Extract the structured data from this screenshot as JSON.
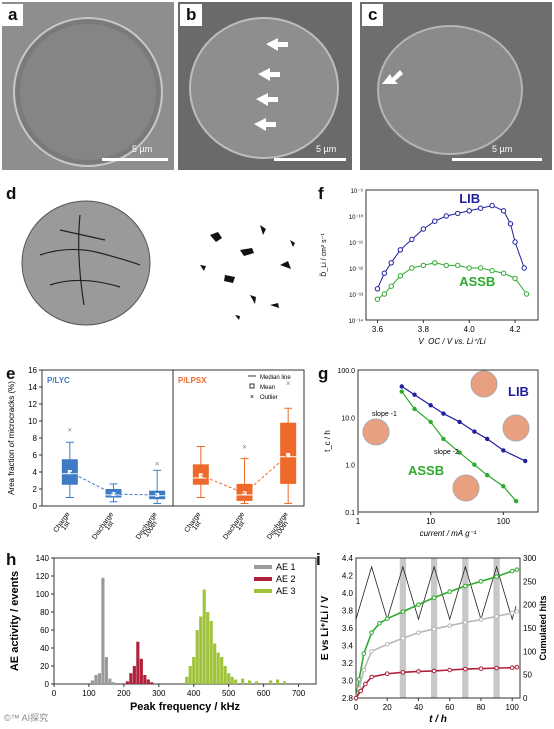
{
  "panels": {
    "a": {
      "letter": "a",
      "scale": "5 µm"
    },
    "b": {
      "letter": "b",
      "scale": "5 µm"
    },
    "c": {
      "letter": "c",
      "scale": "5 µm"
    },
    "d": {
      "letter": "d"
    },
    "e": {
      "letter": "e"
    },
    "f": {
      "letter": "f"
    },
    "g": {
      "letter": "g"
    },
    "h": {
      "letter": "h"
    },
    "i": {
      "letter": "i"
    }
  },
  "watermark": "©™ AI探究",
  "colors": {
    "lib": "#1f1fa0",
    "assb": "#2eaa2e",
    "plyc": "#3d7cc4",
    "plpsx": "#ef6a2a",
    "ae1": "#9a9a9a",
    "ae2": "#b0203a",
    "ae3": "#9fc43c"
  },
  "chart_data": [
    {
      "id": "e",
      "type": "box",
      "ylabel": "Area fraction of microcracks (%)",
      "ylim": [
        0,
        16
      ],
      "yticks": [
        0,
        2,
        4,
        6,
        8,
        10,
        12,
        14,
        16
      ],
      "groups": [
        {
          "name": "P/LYC",
          "color": "#3d7cc4",
          "categories": [
            "Charge\n1st",
            "Discharge\n1st",
            "Discharge\n100th"
          ],
          "q1": [
            2.5,
            1.0,
            0.8
          ],
          "median": [
            3.8,
            1.3,
            1.2
          ],
          "q3": [
            5.5,
            2.0,
            1.8
          ],
          "wlo": [
            1.0,
            0.5,
            0.3
          ],
          "whi": [
            7.5,
            2.6,
            4.2
          ],
          "mean": [
            4.0,
            1.4,
            1.3
          ],
          "outliers": [
            [
              9.0
            ],
            [],
            [
              5.0
            ]
          ]
        },
        {
          "name": "P/LPSX",
          "color": "#ef6a2a",
          "categories": [
            "Charge\n1st",
            "Discharge\n1st",
            "Discharge\n100th"
          ],
          "q1": [
            2.5,
            0.6,
            2.6
          ],
          "median": [
            3.3,
            1.3,
            5.8
          ],
          "q3": [
            4.9,
            2.6,
            9.8
          ],
          "wlo": [
            1.0,
            0.3,
            0.3
          ],
          "whi": [
            7.0,
            5.6,
            11.5
          ],
          "mean": [
            3.6,
            1.5,
            6.0
          ],
          "outliers": [
            [],
            [
              7.0
            ],
            [
              14.5
            ]
          ]
        }
      ],
      "legend": [
        "Median line",
        "Mean",
        "Outlier"
      ]
    },
    {
      "id": "f",
      "type": "scatter-line",
      "xlabel": "V_OC / V vs. Li⁺/Li",
      "ylabel": "D̃_Li / cm² s⁻¹",
      "xlim": [
        3.55,
        4.3
      ],
      "xticks": [
        3.6,
        3.8,
        4.0,
        4.2
      ],
      "ylog": true,
      "yticks": [
        "10⁻⁹",
        "10⁻¹⁰",
        "10⁻¹¹",
        "10⁻¹²",
        "10⁻¹³",
        "10⁻¹⁴"
      ],
      "ylim_exp": [
        -14,
        -9
      ],
      "series": [
        {
          "name": "LIB",
          "color": "#1f1fa0",
          "x": [
            3.6,
            3.63,
            3.66,
            3.7,
            3.75,
            3.8,
            3.85,
            3.9,
            3.95,
            4.0,
            4.05,
            4.1,
            4.15,
            4.18,
            4.2,
            4.24
          ],
          "yexp": [
            -12.8,
            -12.2,
            -11.8,
            -11.3,
            -10.9,
            -10.5,
            -10.2,
            -10.0,
            -9.9,
            -9.8,
            -9.7,
            -9.6,
            -9.8,
            -10.3,
            -11.0,
            -12.0
          ]
        },
        {
          "name": "ASSB",
          "color": "#2eaa2e",
          "x": [
            3.6,
            3.63,
            3.66,
            3.7,
            3.75,
            3.8,
            3.85,
            3.9,
            3.95,
            4.0,
            4.05,
            4.1,
            4.15,
            4.2,
            4.25
          ],
          "yexp": [
            -13.2,
            -13.0,
            -12.7,
            -12.3,
            -12.0,
            -11.9,
            -11.8,
            -11.9,
            -11.9,
            -12.0,
            -12.0,
            -12.1,
            -12.2,
            -12.4,
            -13.0
          ]
        }
      ]
    },
    {
      "id": "g",
      "type": "scatter-line",
      "xlabel": "current / mA g⁻¹",
      "ylabel": "t_c / h",
      "xlog": true,
      "ylog": true,
      "xticks": [
        "1",
        "10",
        "100"
      ],
      "yticks": [
        "100.0",
        "10.0",
        "1.0",
        "0.1"
      ],
      "series": [
        {
          "name": "LIB",
          "color": "#1f1fa0",
          "x": [
            4,
            6,
            10,
            15,
            25,
            40,
            60,
            100,
            200
          ],
          "y": [
            45,
            30,
            18,
            12,
            8,
            5,
            3.5,
            2.0,
            1.2
          ]
        },
        {
          "name": "ASSB",
          "color": "#2eaa2e",
          "x": [
            4,
            6,
            10,
            15,
            25,
            40,
            60,
            100,
            150
          ],
          "y": [
            35,
            15,
            8,
            3.5,
            1.8,
            1.0,
            0.6,
            0.35,
            0.17
          ]
        }
      ],
      "annotations": [
        "slope -1",
        "slope -2"
      ]
    },
    {
      "id": "h",
      "type": "bar",
      "xlabel": "Peak frequency / kHz",
      "ylabel": "AE activity / events",
      "xlim": [
        0,
        750
      ],
      "ylim": [
        0,
        140
      ],
      "xticks": [
        0,
        100,
        200,
        300,
        400,
        500,
        600,
        700
      ],
      "yticks": [
        0,
        20,
        40,
        60,
        80,
        100,
        120,
        140
      ],
      "series": [
        {
          "name": "AE 1",
          "color": "#9a9a9a",
          "x": [
            110,
            120,
            130,
            140,
            150,
            160,
            170
          ],
          "values": [
            4,
            10,
            12,
            118,
            30,
            6,
            2
          ]
        },
        {
          "name": "AE 2",
          "color": "#b0203a",
          "x": [
            210,
            220,
            230,
            240,
            250,
            260,
            270,
            280
          ],
          "values": [
            3,
            12,
            20,
            47,
            28,
            10,
            5,
            2
          ]
        },
        {
          "name": "AE 3",
          "color": "#9fc43c",
          "x": [
            380,
            390,
            400,
            410,
            420,
            430,
            440,
            450,
            460,
            470,
            480,
            490,
            500,
            510,
            520,
            540,
            560,
            580,
            620,
            640,
            660
          ],
          "values": [
            8,
            20,
            30,
            60,
            75,
            105,
            80,
            70,
            45,
            35,
            30,
            20,
            12,
            8,
            5,
            6,
            4,
            3,
            4,
            5,
            3
          ]
        }
      ]
    },
    {
      "id": "i",
      "type": "line",
      "xlabel": "t / h",
      "ylabel": "E vs Li⁺/Li / V",
      "ylabel2": "Cumulated hits",
      "xlim": [
        0,
        105
      ],
      "xticks": [
        0,
        20,
        40,
        60,
        80,
        100
      ],
      "ylim": [
        2.8,
        4.4
      ],
      "yticks": [
        2.8,
        3.0,
        3.2,
        3.4,
        3.6,
        3.8,
        4.0,
        4.2,
        4.4
      ],
      "ylim2": [
        0,
        300
      ],
      "yticks2": [
        0,
        50,
        100,
        150,
        200,
        250,
        300
      ],
      "shaded": [
        [
          28,
          32
        ],
        [
          48,
          52
        ],
        [
          68,
          72
        ],
        [
          88,
          92
        ]
      ],
      "series": [
        {
          "name": "green hits",
          "color": "#2eaa2e",
          "x": [
            0,
            2,
            5,
            10,
            15,
            20,
            30,
            40,
            50,
            60,
            70,
            80,
            90,
            100,
            103
          ],
          "y2": [
            0,
            40,
            95,
            140,
            160,
            170,
            185,
            200,
            215,
            228,
            240,
            250,
            260,
            272,
            275
          ]
        },
        {
          "name": "grey hits",
          "color": "#b8b8b8",
          "x": [
            0,
            2,
            5,
            10,
            20,
            30,
            40,
            50,
            60,
            70,
            80,
            90,
            100,
            103
          ],
          "y2": [
            0,
            20,
            60,
            100,
            115,
            128,
            140,
            148,
            155,
            162,
            168,
            175,
            182,
            185
          ]
        },
        {
          "name": "red hits",
          "color": "#b0203a",
          "x": [
            0,
            3,
            6,
            10,
            20,
            30,
            40,
            50,
            60,
            70,
            80,
            90,
            100,
            103
          ],
          "y2": [
            0,
            15,
            30,
            45,
            52,
            55,
            57,
            58,
            60,
            62,
            63,
            64,
            65,
            66
          ]
        }
      ]
    }
  ]
}
